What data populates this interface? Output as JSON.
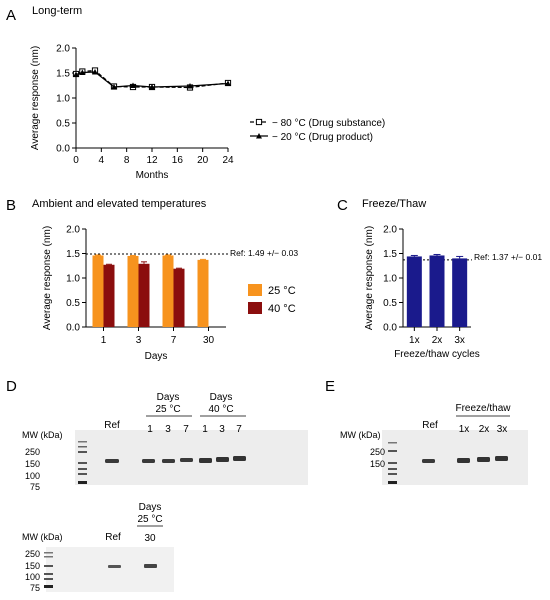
{
  "colors": {
    "orange": "#F7931E",
    "darkred": "#8B0E0E",
    "navy": "#1A1A8C",
    "gel_bg": "#EDEDED",
    "band": "#3a3a3a"
  },
  "panels": {
    "A": {
      "letter": "A",
      "title": "Long-term"
    },
    "B": {
      "letter": "B",
      "title": "Ambient and elevated temperatures",
      "ref_label": "Ref: 1.49 +/− 0.03"
    },
    "C": {
      "letter": "C",
      "title": "Freeze/Thaw",
      "ref_label": "Ref: 1.37 +/− 0.01"
    },
    "D": {
      "letter": "D",
      "mw_label": "MW (kDa)",
      "ref_label": "Ref",
      "markers": [
        "250",
        "150",
        "100",
        "75"
      ],
      "group1_days": "Days",
      "group1_temp": "25 °C",
      "group2_days": "Days",
      "group2_temp": "40 °C",
      "lanes_g1": [
        "1",
        "3",
        "7"
      ],
      "lanes_g2": [
        "1",
        "3",
        "7"
      ],
      "lower": {
        "mw_label": "MW (kDa)",
        "ref_label": "Ref",
        "markers": [
          "250",
          "150",
          "100",
          "75"
        ],
        "group_days": "Days",
        "group_temp": "25 °C",
        "lane": "30"
      }
    },
    "E": {
      "letter": "E",
      "mw_label": "MW (kDa)",
      "ref_label": "Ref",
      "markers": [
        "250",
        "150"
      ],
      "group_label": "Freeze/thaw",
      "lanes": [
        "1x",
        "2x",
        "3x"
      ]
    }
  },
  "chart_data": [
    {
      "panel": "A",
      "type": "line",
      "title": "Long-term",
      "xlabel": "Months",
      "ylabel": "Average response (nm)",
      "xlim": [
        0,
        24
      ],
      "ylim": [
        0,
        2.0
      ],
      "xticks": [
        "0",
        "4",
        "8",
        "12",
        "16",
        "20",
        "24"
      ],
      "yticks": [
        "0.0",
        "0.5",
        "1.0",
        "1.5",
        "2.0"
      ],
      "series": [
        {
          "name": "− 80 °C (Drug substance)",
          "marker": "open-square",
          "line": "dashed",
          "x": [
            0,
            1,
            3,
            6,
            9,
            12,
            18,
            24
          ],
          "y": [
            1.48,
            1.53,
            1.55,
            1.23,
            1.22,
            1.22,
            1.21,
            1.3
          ]
        },
        {
          "name": "− 20 °C (Drug product)",
          "marker": "filled-triangle",
          "line": "solid",
          "x": [
            0,
            1,
            3,
            6,
            9,
            12,
            18,
            24
          ],
          "y": [
            1.47,
            1.51,
            1.52,
            1.22,
            1.25,
            1.22,
            1.24,
            1.29
          ]
        }
      ]
    },
    {
      "panel": "B",
      "type": "bar",
      "title": "Ambient and elevated temperatures",
      "xlabel": "Days",
      "ylabel": "Average response (nm)",
      "categories": [
        "1",
        "3",
        "7",
        "30"
      ],
      "ylim": [
        0,
        2.0
      ],
      "yticks": [
        "0.0",
        "0.5",
        "1.0",
        "1.5",
        "2.0"
      ],
      "reference_line": 1.49,
      "legend_position": "right",
      "series": [
        {
          "name": "25 °C",
          "color": "#F7931E",
          "values": [
            1.46,
            1.45,
            1.46,
            1.37
          ],
          "errors": [
            0.01,
            0.01,
            0.01,
            0.01
          ]
        },
        {
          "name": "40 °C",
          "color": "#8B0E0E",
          "values": [
            1.27,
            1.29,
            1.19,
            null
          ],
          "errors": [
            0.01,
            0.04,
            0.01,
            0
          ]
        }
      ]
    },
    {
      "panel": "C",
      "type": "bar",
      "title": "Freeze/Thaw",
      "xlabel": "Freeze/thaw cycles",
      "ylabel": "Average response (nm)",
      "categories": [
        "1x",
        "2x",
        "3x"
      ],
      "ylim": [
        0,
        2.0
      ],
      "yticks": [
        "0.0",
        "0.5",
        "1.0",
        "1.5",
        "2.0"
      ],
      "reference_line": 1.37,
      "series": [
        {
          "name": "",
          "color": "#1A1A8C",
          "values": [
            1.44,
            1.46,
            1.4
          ],
          "errors": [
            0.02,
            0.02,
            0.04
          ]
        }
      ]
    }
  ]
}
